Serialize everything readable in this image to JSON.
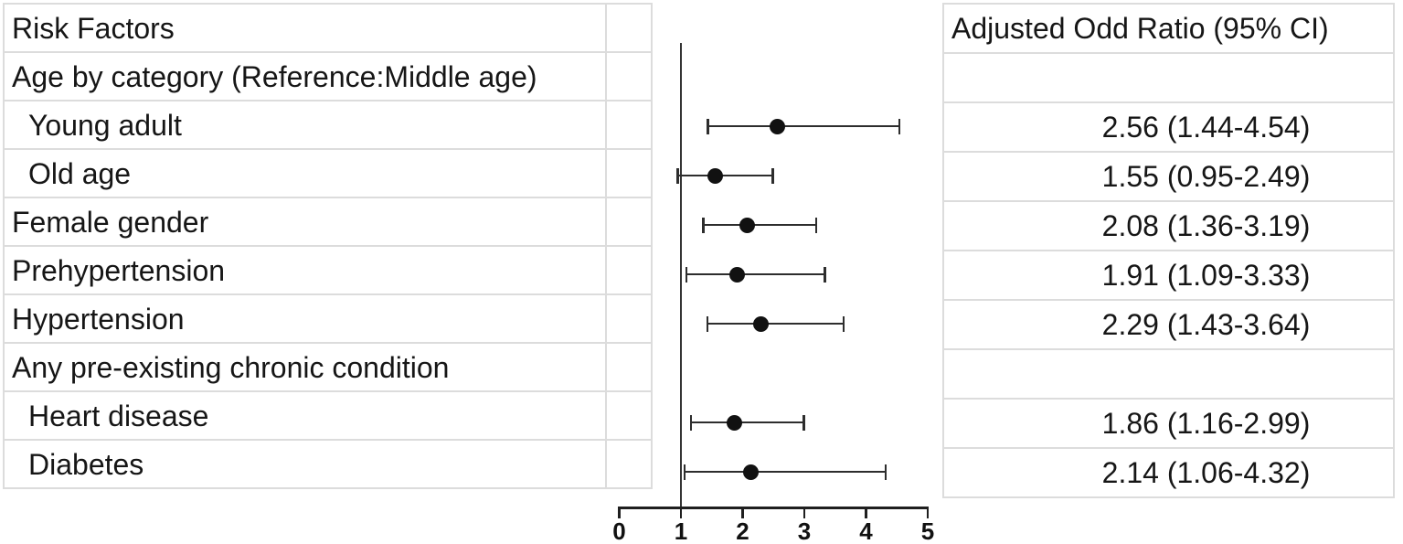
{
  "chart_data": {
    "type": "forest",
    "title": "",
    "xlabel": "",
    "columns": {
      "left_header": "Risk Factors",
      "right_header": "Adjusted Odd Ratio (95% CI)"
    },
    "axis": {
      "min": 0,
      "max": 5,
      "ticks": [
        0,
        1,
        2,
        3,
        4,
        5
      ],
      "reference_line": 1,
      "grid": false
    },
    "rows": [
      {
        "label": "Age by category (Reference:Middle age)",
        "indent": false,
        "or": null,
        "ci_low": null,
        "ci_high": null,
        "or_text": ""
      },
      {
        "label": "Young adult",
        "indent": true,
        "or": 2.56,
        "ci_low": 1.44,
        "ci_high": 4.54,
        "or_text": "2.56 (1.44-4.54)"
      },
      {
        "label": "Old age",
        "indent": true,
        "or": 1.55,
        "ci_low": 0.95,
        "ci_high": 2.49,
        "or_text": "1.55 (0.95-2.49)"
      },
      {
        "label": "Female gender",
        "indent": false,
        "or": 2.08,
        "ci_low": 1.36,
        "ci_high": 3.19,
        "or_text": "2.08 (1.36-3.19)"
      },
      {
        "label": "Prehypertension",
        "indent": false,
        "or": 1.91,
        "ci_low": 1.09,
        "ci_high": 3.33,
        "or_text": "1.91 (1.09-3.33)"
      },
      {
        "label": "Hypertension",
        "indent": false,
        "or": 2.29,
        "ci_low": 1.43,
        "ci_high": 3.64,
        "or_text": "2.29 (1.43-3.64)"
      },
      {
        "label": "Any pre-existing chronic condition",
        "indent": false,
        "or": null,
        "ci_low": null,
        "ci_high": null,
        "or_text": ""
      },
      {
        "label": "Heart disease",
        "indent": true,
        "or": 1.86,
        "ci_low": 1.16,
        "ci_high": 2.99,
        "or_text": "1.86 (1.16-2.99)"
      },
      {
        "label": "Diabetes",
        "indent": true,
        "or": 2.14,
        "ci_low": 1.06,
        "ci_high": 4.32,
        "or_text": "2.14 (1.06-4.32)"
      }
    ]
  }
}
